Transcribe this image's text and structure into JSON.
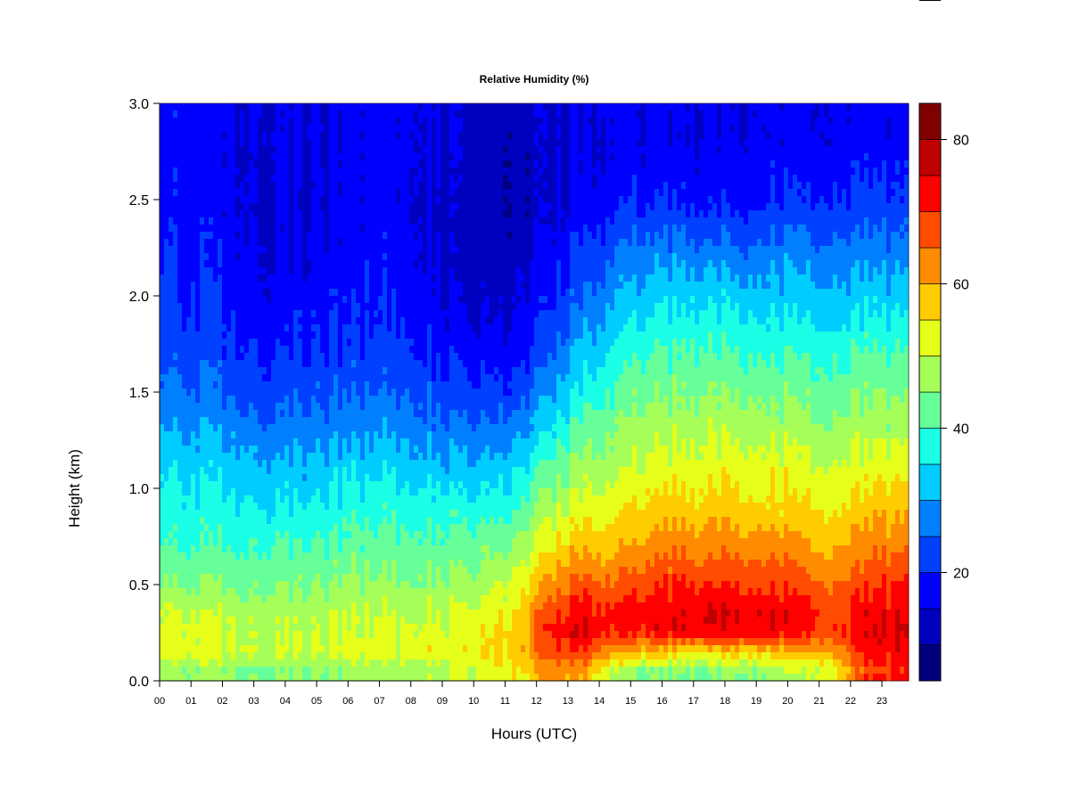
{
  "chart_data": {
    "type": "heatmap",
    "title": "Relative Humidity (%)",
    "xlabel": "Hours (UTC)",
    "ylabel": "Height (km)",
    "xlim": [
      0,
      23.85
    ],
    "ylim": [
      0,
      3.0
    ],
    "x_tick_labels": [
      "00",
      "01",
      "02",
      "03",
      "04",
      "05",
      "06",
      "07",
      "08",
      "09",
      "10",
      "11",
      "12",
      "13",
      "14",
      "15",
      "16",
      "17",
      "18",
      "19",
      "20",
      "21",
      "22",
      "23"
    ],
    "y_ticks": [
      0.0,
      0.5,
      1.0,
      1.5,
      2.0,
      2.5,
      3.0
    ],
    "y_tick_labels": [
      "0.0",
      "0.5",
      "1.0",
      "1.5",
      "2.0",
      "2.5",
      "3.0"
    ],
    "colorbar": {
      "levels": [
        5,
        10,
        15,
        20,
        25,
        30,
        35,
        40,
        45,
        50,
        55,
        60,
        65,
        70,
        75,
        80,
        85
      ],
      "colors": [
        "#00007F",
        "#0000BF",
        "#0000FF",
        "#0040FF",
        "#0080FF",
        "#00CCFF",
        "#1AFFE6",
        "#66FF99",
        "#A6FF59",
        "#E6FF1A",
        "#FFCC00",
        "#FF8C00",
        "#FF4C00",
        "#FF0000",
        "#BF0000",
        "#800000"
      ],
      "ticks": [
        20,
        40,
        60,
        80
      ],
      "tick_labels": [
        "20",
        "40",
        "60",
        "80"
      ]
    },
    "x": [
      0.5,
      1.5,
      2.5,
      3.5,
      4.5,
      5.5,
      6.5,
      7.5,
      8.5,
      9.5,
      10.5,
      11.5,
      12.5,
      13.5,
      14.5,
      15.5,
      16.5,
      17.5,
      18.5,
      19.5,
      20.5,
      21.5,
      22.5,
      23.5
    ],
    "y": [
      0.05,
      0.15,
      0.25,
      0.35,
      0.5,
      0.7,
      0.9,
      1.1,
      1.3,
      1.5,
      1.7,
      1.9,
      2.2,
      2.5,
      2.8
    ],
    "z": [
      [
        46,
        47,
        45,
        44,
        45,
        46,
        47,
        47,
        48,
        49,
        52,
        54,
        62,
        60,
        48,
        45,
        44,
        44,
        45,
        47,
        50,
        55,
        68,
        70
      ],
      [
        52,
        53,
        51,
        50,
        50,
        51,
        52,
        52,
        53,
        53,
        55,
        58,
        68,
        70,
        60,
        58,
        56,
        56,
        58,
        58,
        60,
        62,
        72,
        73
      ],
      [
        52,
        52,
        50,
        49,
        49,
        50,
        51,
        51,
        52,
        52,
        54,
        58,
        72,
        75,
        70,
        72,
        73,
        74,
        74,
        74,
        72,
        70,
        74,
        75
      ],
      [
        50,
        50,
        49,
        48,
        48,
        49,
        50,
        50,
        50,
        50,
        52,
        56,
        70,
        73,
        70,
        73,
        74,
        75,
        75,
        75,
        73,
        70,
        73,
        74
      ],
      [
        45,
        45,
        44,
        44,
        44,
        45,
        46,
        46,
        46,
        46,
        48,
        52,
        63,
        67,
        65,
        68,
        70,
        70,
        70,
        70,
        68,
        65,
        68,
        70
      ],
      [
        40,
        40,
        40,
        40,
        40,
        41,
        42,
        42,
        42,
        42,
        43,
        46,
        55,
        58,
        58,
        62,
        63,
        63,
        63,
        63,
        62,
        60,
        62,
        64
      ],
      [
        37,
        37,
        36,
        35,
        35,
        37,
        38,
        38,
        38,
        37,
        37,
        40,
        48,
        52,
        53,
        56,
        57,
        57,
        57,
        57,
        56,
        55,
        57,
        58
      ],
      [
        34,
        34,
        33,
        31,
        31,
        33,
        34,
        34,
        33,
        31,
        31,
        34,
        42,
        47,
        48,
        52,
        52,
        53,
        53,
        53,
        52,
        51,
        52,
        53
      ],
      [
        30,
        30,
        28,
        26,
        27,
        28,
        29,
        29,
        28,
        26,
        26,
        28,
        36,
        42,
        44,
        48,
        48,
        49,
        49,
        48,
        48,
        47,
        48,
        48
      ],
      [
        26,
        26,
        24,
        22,
        23,
        24,
        25,
        25,
        24,
        22,
        21,
        22,
        30,
        37,
        40,
        44,
        44,
        45,
        45,
        44,
        44,
        43,
        44,
        44
      ],
      [
        23,
        23,
        21,
        19,
        20,
        21,
        22,
        22,
        20,
        18,
        17,
        18,
        25,
        32,
        36,
        40,
        40,
        41,
        40,
        40,
        40,
        39,
        40,
        40
      ],
      [
        21,
        21,
        19,
        17,
        18,
        19,
        20,
        20,
        18,
        15,
        14,
        15,
        21,
        27,
        31,
        35,
        35,
        36,
        35,
        35,
        35,
        34,
        35,
        35
      ],
      [
        20,
        19,
        17,
        15,
        15,
        17,
        18,
        18,
        16,
        13,
        12,
        13,
        17,
        22,
        25,
        28,
        28,
        28,
        27,
        28,
        29,
        28,
        28,
        28
      ],
      [
        18,
        18,
        16,
        14,
        14,
        16,
        17,
        17,
        15,
        13,
        11,
        11,
        14,
        17,
        18,
        19,
        19,
        18,
        18,
        20,
        21,
        21,
        21,
        21
      ],
      [
        18,
        17,
        16,
        15,
        15,
        16,
        17,
        17,
        16,
        14,
        12,
        12,
        14,
        15,
        16,
        16,
        16,
        16,
        16,
        17,
        17,
        17,
        17,
        17
      ]
    ]
  }
}
